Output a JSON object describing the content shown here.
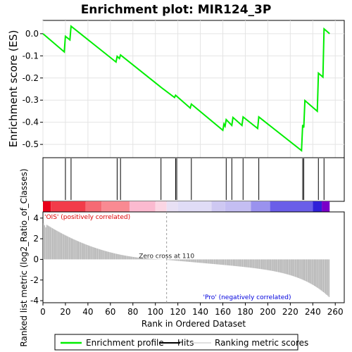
{
  "chart_data": {
    "type": "line",
    "title": "Enrichment plot: MIR124_3P",
    "xlabel": "Rank in Ordered Dataset",
    "ylabel_top": "Enrichment score (ES)",
    "ylabel_bottom": "Ranked list metric (log2_Ratio_of_Classes)",
    "x_ticks": [
      0,
      20,
      40,
      60,
      80,
      100,
      120,
      140,
      160,
      180,
      200,
      220,
      240,
      260
    ],
    "es_y_ticks": [
      0.0,
      -0.1,
      -0.2,
      -0.3,
      -0.4,
      -0.5
    ],
    "es_ylim": [
      -0.56,
      0.06
    ],
    "metric_y_ticks": [
      4,
      2,
      0,
      -2,
      -4
    ],
    "metric_ylim": [
      -4.2,
      4.6
    ],
    "xlim": [
      0,
      268
    ],
    "n_genes": 255,
    "series": [
      {
        "name": "Enrichment profile",
        "color": "#00ee00",
        "x": [
          0,
          19,
          20,
          24,
          25,
          65,
          66,
          68,
          69,
          104,
          105,
          117,
          118,
          131,
          132,
          160,
          161,
          162,
          163,
          168,
          169,
          177,
          178,
          191,
          192,
          230,
          231,
          232,
          233,
          244,
          245,
          249,
          250,
          255
        ],
        "y": [
          0.0,
          -0.082,
          -0.012,
          -0.028,
          0.034,
          -0.128,
          -0.102,
          -0.112,
          -0.096,
          -0.238,
          -0.242,
          -0.288,
          -0.278,
          -0.336,
          -0.318,
          -0.436,
          -0.408,
          -0.418,
          -0.388,
          -0.414,
          -0.378,
          -0.414,
          -0.376,
          -0.428,
          -0.376,
          -0.528,
          -0.412,
          -0.424,
          -0.302,
          -0.35,
          -0.178,
          -0.196,
          0.022,
          0.0
        ]
      }
    ],
    "hits": [
      20,
      25,
      66,
      69,
      105,
      118,
      119,
      132,
      163,
      168,
      178,
      192,
      231,
      232,
      245,
      250
    ],
    "metric": {
      "positive_label": "'OIS' (positively correlated)",
      "negative_label": "'Pro' (negatively correlated)",
      "zero_cross_label": "Zero cross at 110",
      "zero_cross": 110,
      "positive_color": "#dd0000",
      "negative_color": "#0000dd"
    },
    "legend": {
      "position": "bottom",
      "items": [
        {
          "label": "Enrichment profile",
          "color": "#00ee00"
        },
        {
          "label": "Hits",
          "color": "#000000"
        },
        {
          "label": "Ranking metric scores",
          "color": "#c0c0c0"
        }
      ]
    }
  }
}
